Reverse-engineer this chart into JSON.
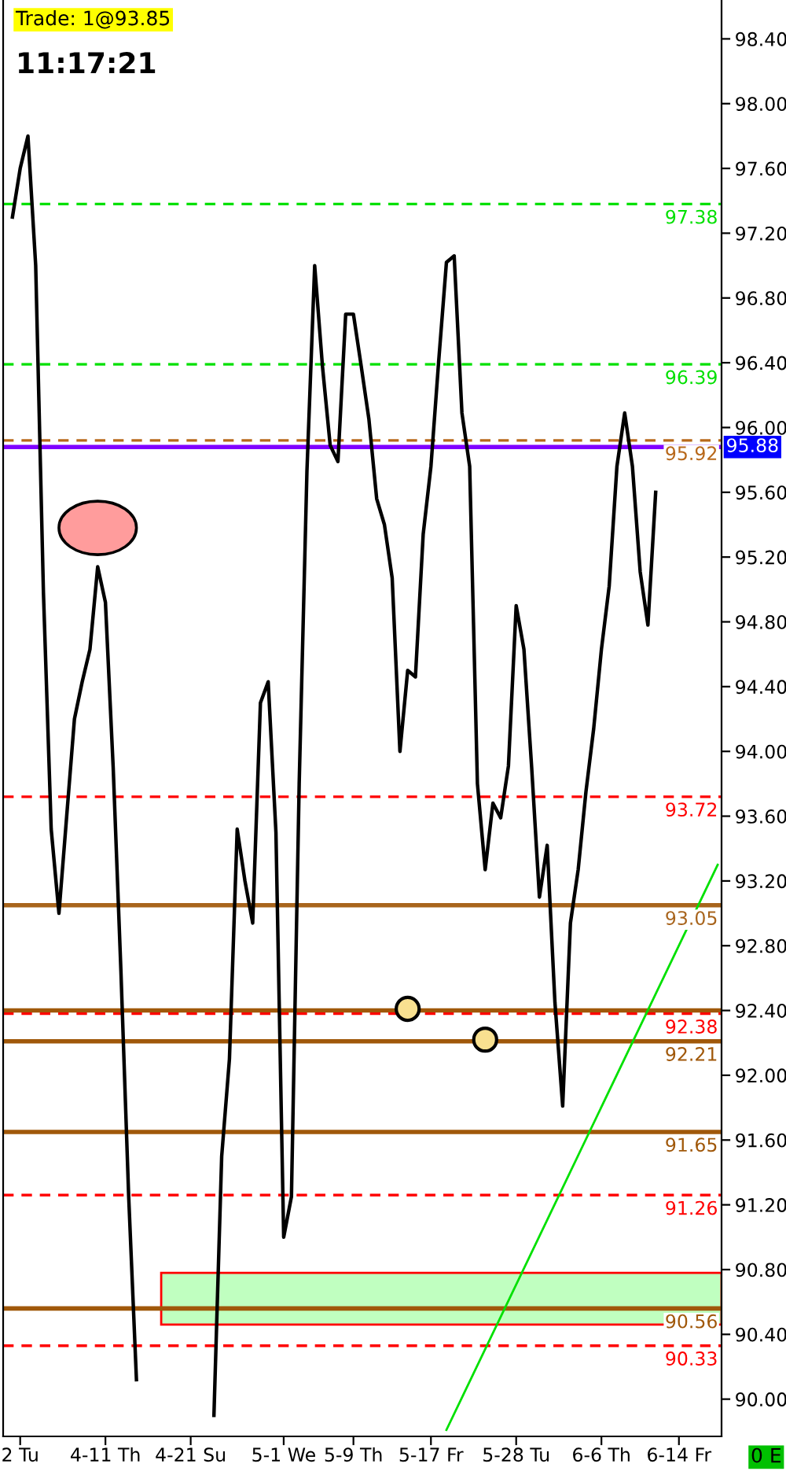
{
  "chart_data": {
    "type": "line",
    "categories": [
      null,
      "2 Tu",
      null,
      null,
      null,
      null,
      null,
      null,
      null,
      null,
      null,
      null,
      "4-11 Th",
      null,
      null,
      null,
      null,
      null,
      null,
      null,
      null,
      null,
      null,
      "4-21 Su",
      null,
      null,
      null,
      null,
      null,
      null,
      null,
      null,
      null,
      null,
      null,
      "5-1 We",
      null,
      null,
      null,
      null,
      null,
      null,
      null,
      null,
      "5-9 Th",
      null,
      null,
      null,
      null,
      null,
      null,
      null,
      null,
      null,
      "5-17 Fr",
      null,
      null,
      null,
      null,
      null,
      null,
      null,
      null,
      null,
      null,
      "5-28 Tu",
      null,
      null,
      null,
      null,
      null,
      null,
      null,
      null,
      null,
      null,
      "6-6 Th",
      null,
      null,
      null,
      null,
      null,
      null,
      null,
      null,
      null,
      "6-14 Fr",
      null,
      null,
      null,
      null,
      null
    ],
    "series": [
      {
        "color": "#000000",
        "values": [
          97.3,
          97.6,
          97.8,
          97.0,
          94.98,
          93.52,
          93.0,
          93.6,
          94.2,
          94.43,
          94.63,
          95.14,
          94.92,
          93.9,
          92.64,
          91.25,
          90.12,
          null,
          null,
          null,
          null,
          null,
          null,
          null,
          null,
          null,
          89.9,
          91.5,
          92.1,
          93.52,
          93.2,
          92.94,
          94.3,
          94.43,
          93.5,
          91.0,
          91.25,
          93.8,
          95.73,
          97.0,
          96.38,
          95.89,
          95.79,
          96.7,
          96.7,
          96.38,
          96.05,
          95.56,
          95.4,
          95.07,
          94.0,
          94.5,
          94.46,
          95.34,
          95.76,
          96.41,
          97.02,
          97.06,
          96.09,
          95.76,
          93.8,
          93.27,
          93.68,
          93.59,
          93.91,
          94.9,
          94.63,
          93.9,
          93.1,
          93.42,
          92.45,
          91.81,
          92.94,
          93.27,
          93.75,
          94.14,
          94.63,
          95.02,
          95.76,
          96.09,
          95.76,
          95.11,
          94.78,
          95.6,
          null,
          null,
          null,
          null,
          null,
          null,
          null,
          null
        ]
      },
      {
        "type": "line",
        "color": "#00e000",
        "values": [
          null,
          null,
          null,
          null,
          null,
          null,
          null,
          null,
          null,
          null,
          null,
          null,
          null,
          null,
          null,
          null,
          null,
          null,
          null,
          null,
          null,
          null,
          null,
          null,
          null,
          null,
          null,
          null,
          null,
          null,
          null,
          null,
          null,
          null,
          null,
          null,
          null,
          null,
          null,
          null,
          null,
          null,
          null,
          null,
          null,
          null,
          null,
          null,
          null,
          null,
          null,
          null,
          null,
          null,
          null,
          null,
          89.81,
          null,
          null,
          null,
          null,
          null,
          null,
          null,
          null,
          null,
          null,
          null,
          null,
          null,
          null,
          null,
          null,
          null,
          null,
          null,
          null,
          null,
          null,
          null,
          null,
          null,
          null,
          null,
          null,
          null,
          null,
          null,
          null,
          null,
          null,
          93.3
        ]
      },
      {
        "type": "scatter",
        "color": "#f8e090",
        "marker": "circle",
        "values": [
          null,
          null,
          null,
          null,
          null,
          null,
          null,
          null,
          null,
          null,
          null,
          null,
          null,
          null,
          null,
          null,
          null,
          null,
          null,
          null,
          null,
          null,
          null,
          null,
          null,
          null,
          null,
          null,
          null,
          null,
          null,
          null,
          null,
          null,
          null,
          null,
          null,
          null,
          null,
          null,
          null,
          null,
          null,
          null,
          null,
          null,
          null,
          null,
          null,
          null,
          null,
          92.41,
          null,
          null,
          null,
          null,
          null,
          null,
          null,
          null,
          null,
          92.22,
          null,
          null,
          null,
          null,
          null,
          null,
          null,
          null,
          null,
          null,
          null,
          null,
          null,
          null,
          null,
          null,
          null,
          null,
          null,
          null,
          null,
          null,
          null,
          null,
          null,
          null,
          null,
          null,
          null,
          null
        ]
      }
    ],
    "ylim": [
      89.77,
      98.64
    ],
    "yticks": [
      {
        "value": 90.0,
        "label": "90.00"
      },
      {
        "value": 90.4,
        "label": "90.40"
      },
      {
        "value": 90.8,
        "label": "90.80"
      },
      {
        "value": 91.2,
        "label": "91.20"
      },
      {
        "value": 91.6,
        "label": "91.60"
      },
      {
        "value": 92.0,
        "label": "92.00"
      },
      {
        "value": 92.4,
        "label": "92.40"
      },
      {
        "value": 92.8,
        "label": "92.80"
      },
      {
        "value": 93.2,
        "label": "93.20"
      },
      {
        "value": 93.6,
        "label": "93.60"
      },
      {
        "value": 94.0,
        "label": "94.00"
      },
      {
        "value": 94.4,
        "label": "94.40"
      },
      {
        "value": 94.8,
        "label": "94.80"
      },
      {
        "value": 95.2,
        "label": "95.20"
      },
      {
        "value": 95.6,
        "label": "95.60"
      },
      {
        "value": 96.0,
        "label": "96.00"
      },
      {
        "value": 96.4,
        "label": "96.40"
      },
      {
        "value": 96.8,
        "label": "96.80"
      },
      {
        "value": 97.2,
        "label": "97.20"
      },
      {
        "value": 97.6,
        "label": "97.60"
      },
      {
        "value": 98.0,
        "label": "98.00"
      },
      {
        "value": 98.4,
        "label": "98.40"
      }
    ],
    "ref_lines": [
      {
        "axis": "y",
        "value": 97.38,
        "label": "97.38",
        "color": "#00e000",
        "line_style": "dashed"
      },
      {
        "axis": "y",
        "value": 96.39,
        "label": "96.39",
        "color": "#00e000",
        "line_style": "dashed"
      },
      {
        "axis": "y",
        "value": 95.92,
        "label": "95.92",
        "color": "#b8681a",
        "line_style": "dashed"
      },
      {
        "axis": "y",
        "value": 95.88,
        "label": "95.88",
        "color": "#8000ff",
        "line_style": "solid"
      },
      {
        "axis": "y",
        "value": 93.72,
        "label": "93.72",
        "color": "#ff0000",
        "line_style": "dashed"
      },
      {
        "axis": "y",
        "value": 93.05,
        "label": "93.05",
        "color": "#a8641c",
        "line_style": "solid"
      },
      {
        "axis": "y",
        "value": 92.4,
        "label": null,
        "color": "#a0580a",
        "line_style": "solid"
      },
      {
        "axis": "y",
        "value": 92.38,
        "label": "92.38",
        "color": "#ff0000",
        "line_style": "dashed"
      },
      {
        "axis": "y",
        "value": 92.21,
        "label": "92.21",
        "color": "#a0580a",
        "line_style": "solid"
      },
      {
        "axis": "y",
        "value": 91.65,
        "label": "91.65",
        "color": "#a0580a",
        "line_style": "solid"
      },
      {
        "axis": "y",
        "value": 91.26,
        "label": "91.26",
        "color": "#ff0000",
        "line_style": "dashed"
      },
      {
        "axis": "y",
        "value": 90.56,
        "label": "90.56",
        "color": "#a0580a",
        "line_style": "solid"
      },
      {
        "axis": "y",
        "value": 90.33,
        "label": "90.33",
        "color": "#ff0000",
        "line_style": "dashed"
      }
    ],
    "bands": [
      {
        "axis": "y",
        "from": 90.46,
        "to": 90.78,
        "color": "#c0ffc0"
      }
    ],
    "annotations": [
      "Trade: 1@93.85",
      "11:17:21",
      "0 E"
    ],
    "grid": false,
    "legend": false
  }
}
